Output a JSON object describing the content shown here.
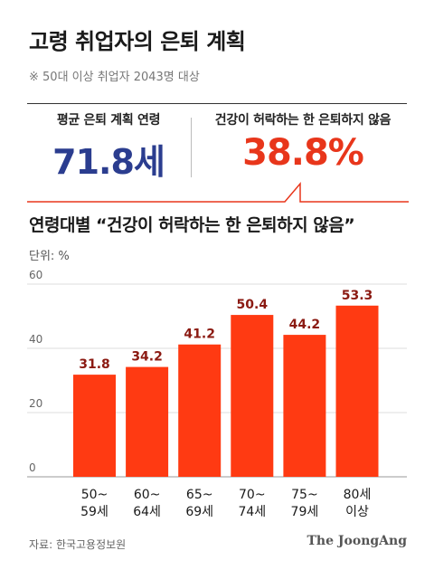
{
  "header": {
    "title": "고령 취업자의 은퇴 계획",
    "subtitle": "※ 50대 이상 취업자 2043명 대상"
  },
  "stats": {
    "left_label": "평균 은퇴 계획 연령",
    "left_value": "71.8세",
    "right_label": "건강이 허락하는 한 은퇴하지 않음",
    "right_value": "38.8%"
  },
  "colors": {
    "bar": "#ff3a12",
    "value_label": "#8b1a12",
    "accent_blue": "#2b3d8f",
    "accent_red": "#e8361b"
  },
  "chart_data": {
    "type": "bar",
    "title": "연령대별 “건강이 허락하는 한 은퇴하지 않음”",
    "unit_label": "단위: %",
    "categories": [
      "50~\n59세",
      "60~\n64세",
      "65~\n69세",
      "70~\n74세",
      "75~\n79세",
      "80세\n이상"
    ],
    "values": [
      31.8,
      34.2,
      41.2,
      50.4,
      44.2,
      53.3
    ],
    "value_labels": [
      "31.8",
      "34.2",
      "41.2",
      "50.4",
      "44.2",
      "53.3"
    ],
    "ylim": [
      0,
      60
    ],
    "yticks": [
      0,
      20,
      40,
      60
    ],
    "grid": true
  },
  "footer": {
    "source": "자료: 한국고용정보원",
    "brand": "The JoongAng"
  }
}
